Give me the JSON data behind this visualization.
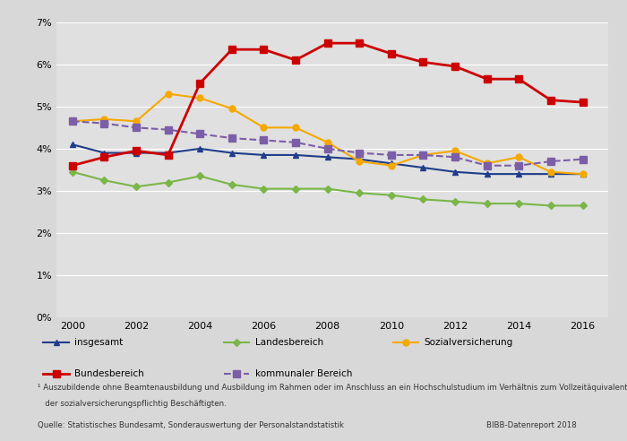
{
  "years": [
    2000,
    2001,
    2002,
    2003,
    2004,
    2005,
    2006,
    2007,
    2008,
    2009,
    2010,
    2011,
    2012,
    2013,
    2014,
    2015,
    2016
  ],
  "insgesamt": [
    4.1,
    3.9,
    3.9,
    3.9,
    4.0,
    3.9,
    3.85,
    3.85,
    3.8,
    3.75,
    3.65,
    3.55,
    3.45,
    3.4,
    3.4,
    3.4,
    3.4
  ],
  "landesbereich": [
    3.45,
    3.25,
    3.1,
    3.2,
    3.35,
    3.15,
    3.05,
    3.05,
    3.05,
    2.95,
    2.9,
    2.8,
    2.75,
    2.7,
    2.7,
    2.65,
    2.65
  ],
  "sozialversicherung": [
    4.65,
    4.7,
    4.65,
    5.3,
    5.2,
    4.95,
    4.5,
    4.5,
    4.15,
    3.7,
    3.6,
    3.85,
    3.95,
    3.65,
    3.8,
    3.45,
    3.4
  ],
  "bundesbereich": [
    3.6,
    3.8,
    3.95,
    3.85,
    5.55,
    6.35,
    6.35,
    6.1,
    6.5,
    6.5,
    6.25,
    6.05,
    5.95,
    5.65,
    5.65,
    5.15,
    5.1
  ],
  "kommunaler_bereich": [
    4.65,
    4.6,
    4.5,
    4.45,
    4.35,
    4.25,
    4.2,
    4.15,
    4.0,
    3.9,
    3.85,
    3.85,
    3.8,
    3.6,
    3.6,
    3.7,
    3.75
  ],
  "color_insgesamt": "#1f3d8a",
  "color_landesbereich": "#7ab648",
  "color_sozialversicherung": "#f5a800",
  "color_bundesbereich": "#cc0000",
  "color_kommunaler": "#7b5ea7",
  "bg_color": "#e8e8e8",
  "plot_bg_color": "#e0e0e0",
  "ylim": [
    0,
    7
  ],
  "yticks": [
    0,
    1,
    2,
    3,
    4,
    5,
    6,
    7
  ],
  "ytick_labels": [
    "0%",
    "1%",
    "2%",
    "3%",
    "4%",
    "5%",
    "6%",
    "7%"
  ],
  "xticks": [
    2000,
    2002,
    2004,
    2006,
    2008,
    2010,
    2012,
    2014,
    2016
  ],
  "footnote1": "¹ Auszubildende ohne Beamtenausbildung und Ausbildung im Rahmen oder im Anschluss an ein Hochschulstudium im Verhältnis zum Vollzeitäquivalent",
  "footnote2": "   der sozialversicherungspflichtig Beschäftigten.",
  "source": "Quelle: Statistisches Bundesamt, Sonderauswertung der Personalstandstatistik",
  "bibb": "BIBB-Datenreport 2018"
}
